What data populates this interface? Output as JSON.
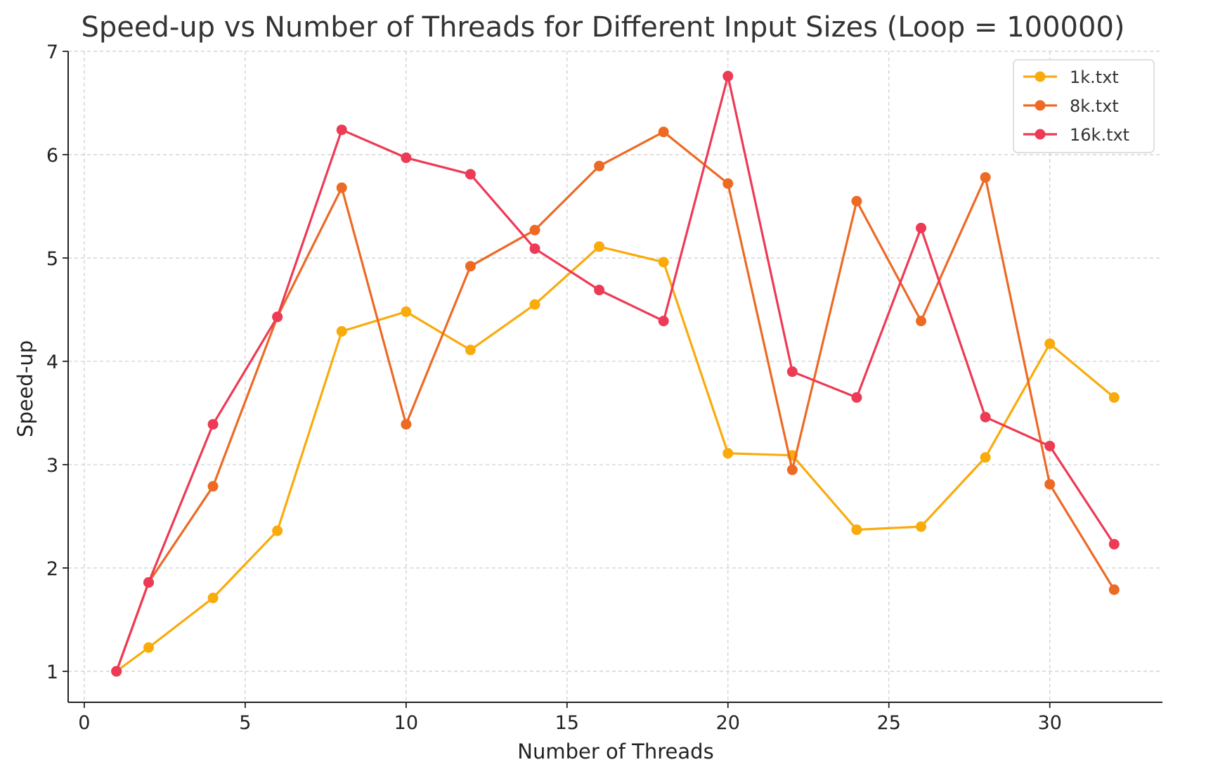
{
  "chart_data": {
    "type": "line",
    "title": "Speed-up vs Number of Threads for Different Input Sizes (Loop = 100000)",
    "xlabel": "Number of Threads",
    "ylabel": "Speed-up",
    "xlim": [
      -0.5,
      33.5
    ],
    "ylim": [
      0.7,
      7.0
    ],
    "xticks": [
      0,
      5,
      10,
      15,
      20,
      25,
      30
    ],
    "yticks": [
      1,
      2,
      3,
      4,
      5,
      6,
      7
    ],
    "grid": true,
    "legend_position": "top-right",
    "x": [
      1,
      2,
      4,
      6,
      8,
      10,
      12,
      14,
      16,
      18,
      20,
      22,
      24,
      26,
      28,
      30,
      32
    ],
    "series": [
      {
        "name": "1k.txt",
        "color": "#f9ab0b",
        "values": [
          1.0,
          1.23,
          1.71,
          2.36,
          4.29,
          4.48,
          4.11,
          4.55,
          5.11,
          4.96,
          3.11,
          3.09,
          2.37,
          2.4,
          3.07,
          4.17,
          3.65
        ]
      },
      {
        "name": "8k.txt",
        "color": "#ed6a25",
        "values": [
          1.0,
          1.86,
          2.79,
          4.43,
          5.68,
          3.39,
          4.92,
          5.27,
          5.89,
          6.22,
          5.72,
          2.95,
          5.55,
          4.39,
          5.78,
          2.81,
          1.79
        ]
      },
      {
        "name": "16k.txt",
        "color": "#ed3a55",
        "values": [
          1.0,
          1.86,
          3.39,
          4.43,
          6.24,
          5.97,
          5.81,
          5.09,
          4.69,
          4.39,
          6.76,
          3.9,
          3.65,
          5.29,
          3.46,
          3.18,
          2.23
        ]
      }
    ]
  }
}
